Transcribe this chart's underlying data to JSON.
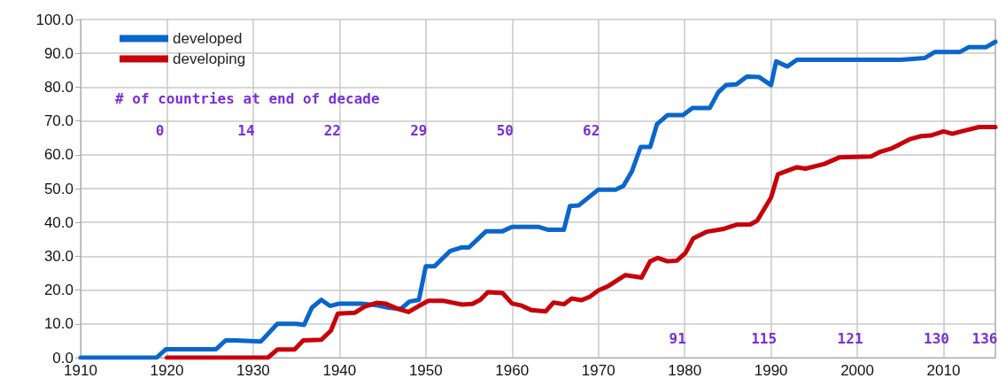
{
  "chart_data": {
    "type": "line",
    "series": [
      {
        "name": "developed",
        "color": "#0a66cc",
        "x": [
          1910,
          1918.8,
          1919.9,
          1925.7,
          1926.8,
          1928,
          1930.9,
          1932.8,
          1935,
          1935.9,
          1936.8,
          1937.9,
          1938.9,
          1940,
          1942.5,
          1944.3,
          1945.7,
          1947.1,
          1948.1,
          1949.2,
          1950,
          1951,
          1952.8,
          1954.2,
          1955,
          1957,
          1958.9,
          1960,
          1963,
          1964.2,
          1966,
          1966.7,
          1967.7,
          1970,
          1972,
          1972.9,
          1973.9,
          1974.9,
          1976,
          1976.8,
          1978,
          1979.8,
          1980.9,
          1982.9,
          1983.9,
          1984.8,
          1986,
          1987.2,
          1988.6,
          1990,
          1990.6,
          1991.9,
          1993,
          2005.1,
          2007.8,
          2009,
          2011.9,
          2012.9,
          2014.9,
          2016
        ],
        "values": [
          0,
          0,
          2.5,
          2.5,
          5.1,
          5.1,
          4.8,
          10,
          10,
          9.7,
          14.8,
          17.1,
          15.3,
          16,
          16,
          15.5,
          14.8,
          14.4,
          16.6,
          17.1,
          27,
          27,
          31.5,
          32.6,
          32.6,
          37.4,
          37.4,
          38.7,
          38.7,
          37.8,
          37.8,
          44.8,
          45,
          49.7,
          49.7,
          50.8,
          55.2,
          62.3,
          62.3,
          69.1,
          71.7,
          71.7,
          73.8,
          73.8,
          78.5,
          80.6,
          80.8,
          83.1,
          83,
          80.6,
          87.6,
          86.1,
          88.1,
          88.1,
          88.6,
          90.4,
          90.4,
          91.8,
          91.8,
          93.4
        ]
      },
      {
        "name": "developing",
        "color": "#c8000a",
        "x": [
          1920,
          1931.7,
          1932.8,
          1934.8,
          1935.8,
          1937.9,
          1939,
          1939.8,
          1941.8,
          1942.9,
          1944.3,
          1945.3,
          1946.7,
          1948,
          1949.2,
          1950.3,
          1952.1,
          1954.2,
          1955.4,
          1956.3,
          1957.2,
          1958.9,
          1960,
          1961.1,
          1962.2,
          1963.9,
          1964.8,
          1966,
          1966.9,
          1968,
          1969,
          1970,
          1971.1,
          1973.1,
          1975,
          1976,
          1976.9,
          1978,
          1979.1,
          1980.1,
          1981,
          1982.5,
          1984.4,
          1986,
          1987.6,
          1988.4,
          1990,
          1990.8,
          1993,
          1994,
          1996.2,
          1997.9,
          2001.6,
          2002.7,
          2004,
          2006.2,
          2007.4,
          2008.5,
          2010,
          2011,
          2012.5,
          2014.1,
          2016
        ],
        "values": [
          0,
          0,
          2.4,
          2.4,
          5.1,
          5.3,
          8,
          13,
          13.3,
          15.1,
          16.2,
          16,
          14.5,
          13.5,
          15.3,
          16.8,
          16.8,
          15.7,
          15.9,
          17.1,
          19.4,
          19.1,
          16,
          15.4,
          14.1,
          13.7,
          16.3,
          15.8,
          17.5,
          17,
          18,
          19.9,
          21.1,
          24.4,
          23.7,
          28.5,
          29.5,
          28.5,
          28.7,
          31,
          35.3,
          37.2,
          38,
          39.3,
          39.4,
          40.5,
          47.3,
          54.2,
          56.3,
          55.9,
          57.3,
          59.2,
          59.5,
          60.9,
          61.9,
          64.7,
          65.5,
          65.7,
          66.9,
          66.2,
          67.2,
          68.2,
          68.2
        ]
      }
    ],
    "xlim": [
      1910,
      2016
    ],
    "xticks": [
      1910,
      1920,
      1930,
      1940,
      1950,
      1960,
      1970,
      1980,
      1990,
      2000,
      2010
    ],
    "ylim": [
      0,
      100
    ],
    "yticks": [
      {
        "value": 0,
        "label": "0.0"
      },
      {
        "value": 10,
        "label": "10.0"
      },
      {
        "value": 20,
        "label": "20.0"
      },
      {
        "value": 30,
        "label": "30.0"
      },
      {
        "value": 40,
        "label": "40.0"
      },
      {
        "value": 50,
        "label": "50.0"
      },
      {
        "value": 60,
        "label": "60.0"
      },
      {
        "value": 70,
        "label": "70.0"
      },
      {
        "value": 80,
        "label": "80.0"
      },
      {
        "value": 90,
        "label": "90.0"
      },
      {
        "value": 100,
        "label": "100.0"
      }
    ],
    "grid": true,
    "legend": "top left",
    "marker": "none",
    "line_style": "solid",
    "annotations": [
      "# of countries at end of decade",
      "0",
      "14",
      "22",
      "29",
      "50",
      "62",
      "91",
      "115",
      "121",
      "130",
      "136"
    ]
  }
}
